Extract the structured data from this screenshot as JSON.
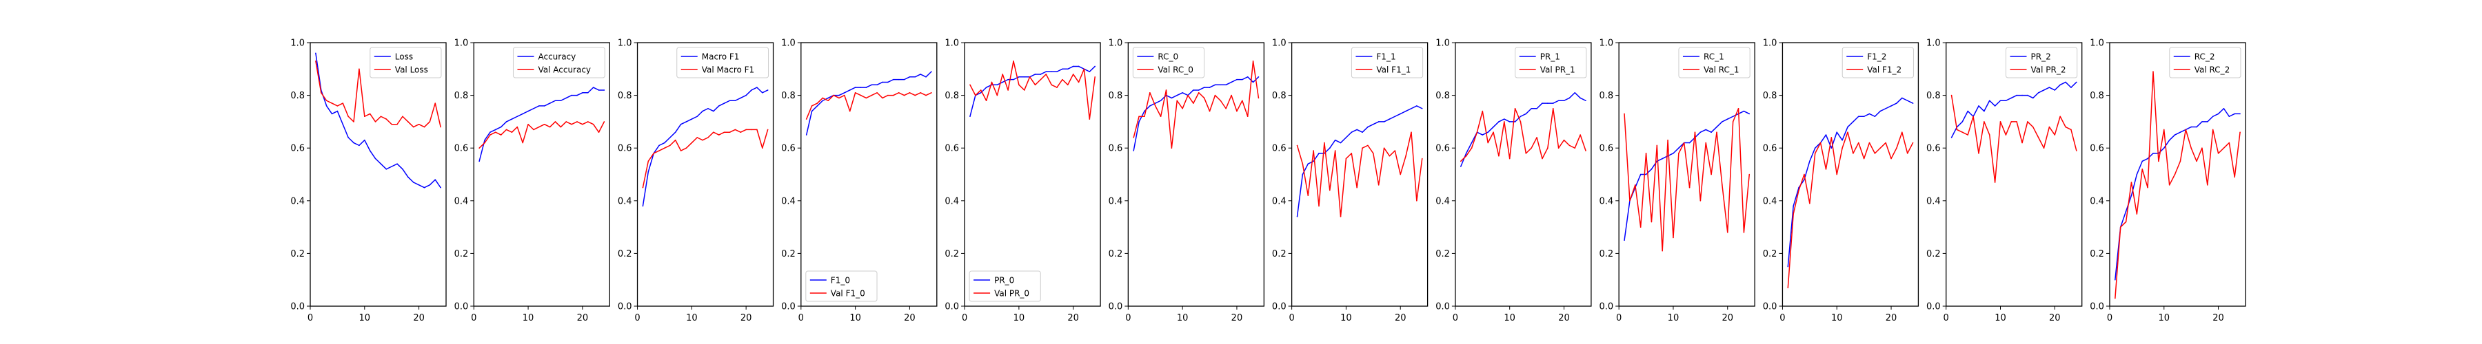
{
  "figure": {
    "background": "#ffffff"
  },
  "colors": {
    "train": "#0000ff",
    "val": "#ff0000",
    "axis": "#000000"
  },
  "x_ticks": [
    0,
    10,
    20
  ],
  "y_ticks": [
    "0.0",
    "0.2",
    "0.4",
    "0.6",
    "0.8",
    "1.0"
  ],
  "chart_data": [
    {
      "type": "line",
      "xlim": [
        0,
        25
      ],
      "ylim": [
        0,
        1
      ],
      "legend": "top-right",
      "x": [
        1,
        2,
        3,
        4,
        5,
        6,
        7,
        8,
        9,
        10,
        11,
        12,
        13,
        14,
        15,
        16,
        17,
        18,
        19,
        20,
        21,
        22,
        23,
        24
      ],
      "series": [
        {
          "name": "Loss",
          "color": "#0000ff",
          "values": [
            0.96,
            0.82,
            0.76,
            0.73,
            0.74,
            0.69,
            0.64,
            0.62,
            0.61,
            0.63,
            0.59,
            0.56,
            0.54,
            0.52,
            0.53,
            0.54,
            0.52,
            0.49,
            0.47,
            0.46,
            0.45,
            0.46,
            0.48,
            0.45
          ]
        },
        {
          "name": "Val Loss",
          "color": "#ff0000",
          "values": [
            0.93,
            0.81,
            0.78,
            0.77,
            0.76,
            0.77,
            0.72,
            0.7,
            0.9,
            0.72,
            0.73,
            0.7,
            0.72,
            0.71,
            0.69,
            0.69,
            0.72,
            0.7,
            0.68,
            0.69,
            0.68,
            0.7,
            0.77,
            0.68
          ]
        }
      ]
    },
    {
      "type": "line",
      "xlim": [
        0,
        25
      ],
      "ylim": [
        0,
        1
      ],
      "legend": "top-right",
      "x": [
        1,
        2,
        3,
        4,
        5,
        6,
        7,
        8,
        9,
        10,
        11,
        12,
        13,
        14,
        15,
        16,
        17,
        18,
        19,
        20,
        21,
        22,
        23,
        24
      ],
      "series": [
        {
          "name": "Accuracy",
          "color": "#0000ff",
          "values": [
            0.55,
            0.63,
            0.66,
            0.67,
            0.68,
            0.7,
            0.71,
            0.72,
            0.73,
            0.74,
            0.75,
            0.76,
            0.76,
            0.77,
            0.78,
            0.78,
            0.79,
            0.8,
            0.8,
            0.81,
            0.81,
            0.83,
            0.82,
            0.82
          ]
        },
        {
          "name": "Val Accuracy",
          "color": "#ff0000",
          "values": [
            0.6,
            0.62,
            0.65,
            0.66,
            0.65,
            0.67,
            0.66,
            0.68,
            0.62,
            0.69,
            0.67,
            0.68,
            0.69,
            0.68,
            0.7,
            0.68,
            0.7,
            0.69,
            0.7,
            0.69,
            0.7,
            0.69,
            0.66,
            0.7
          ]
        }
      ]
    },
    {
      "type": "line",
      "xlim": [
        0,
        25
      ],
      "ylim": [
        0,
        1
      ],
      "legend": "top-right",
      "x": [
        1,
        2,
        3,
        4,
        5,
        6,
        7,
        8,
        9,
        10,
        11,
        12,
        13,
        14,
        15,
        16,
        17,
        18,
        19,
        20,
        21,
        22,
        23,
        24
      ],
      "series": [
        {
          "name": "Macro F1",
          "color": "#0000ff",
          "values": [
            0.38,
            0.51,
            0.58,
            0.61,
            0.62,
            0.64,
            0.66,
            0.69,
            0.7,
            0.71,
            0.72,
            0.74,
            0.75,
            0.74,
            0.76,
            0.77,
            0.78,
            0.78,
            0.79,
            0.8,
            0.82,
            0.83,
            0.81,
            0.82
          ]
        },
        {
          "name": "Val Macro F1",
          "color": "#ff0000",
          "values": [
            0.45,
            0.55,
            0.58,
            0.59,
            0.6,
            0.61,
            0.63,
            0.59,
            0.6,
            0.62,
            0.64,
            0.63,
            0.64,
            0.66,
            0.65,
            0.66,
            0.66,
            0.67,
            0.66,
            0.67,
            0.67,
            0.67,
            0.6,
            0.67
          ]
        }
      ]
    },
    {
      "type": "line",
      "xlim": [
        0,
        25
      ],
      "ylim": [
        0,
        1
      ],
      "legend": "bottom-left",
      "x": [
        1,
        2,
        3,
        4,
        5,
        6,
        7,
        8,
        9,
        10,
        11,
        12,
        13,
        14,
        15,
        16,
        17,
        18,
        19,
        20,
        21,
        22,
        23,
        24
      ],
      "series": [
        {
          "name": "F1_0",
          "color": "#0000ff",
          "values": [
            0.65,
            0.74,
            0.76,
            0.78,
            0.79,
            0.8,
            0.8,
            0.81,
            0.82,
            0.83,
            0.83,
            0.83,
            0.84,
            0.84,
            0.85,
            0.85,
            0.86,
            0.86,
            0.86,
            0.87,
            0.87,
            0.88,
            0.87,
            0.89
          ]
        },
        {
          "name": "Val F1_0",
          "color": "#ff0000",
          "values": [
            0.71,
            0.76,
            0.77,
            0.79,
            0.78,
            0.8,
            0.79,
            0.8,
            0.74,
            0.81,
            0.8,
            0.79,
            0.8,
            0.81,
            0.79,
            0.8,
            0.8,
            0.81,
            0.8,
            0.81,
            0.8,
            0.81,
            0.8,
            0.81
          ]
        }
      ]
    },
    {
      "type": "line",
      "xlim": [
        0,
        25
      ],
      "ylim": [
        0,
        1
      ],
      "legend": "bottom-left",
      "x": [
        1,
        2,
        3,
        4,
        5,
        6,
        7,
        8,
        9,
        10,
        11,
        12,
        13,
        14,
        15,
        16,
        17,
        18,
        19,
        20,
        21,
        22,
        23,
        24
      ],
      "series": [
        {
          "name": "PR_0",
          "color": "#0000ff",
          "values": [
            0.72,
            0.8,
            0.81,
            0.83,
            0.84,
            0.84,
            0.85,
            0.86,
            0.86,
            0.87,
            0.87,
            0.87,
            0.88,
            0.88,
            0.89,
            0.89,
            0.89,
            0.9,
            0.9,
            0.91,
            0.91,
            0.9,
            0.89,
            0.91
          ]
        },
        {
          "name": "Val PR_0",
          "color": "#ff0000",
          "values": [
            0.84,
            0.8,
            0.82,
            0.78,
            0.85,
            0.8,
            0.88,
            0.82,
            0.93,
            0.84,
            0.82,
            0.87,
            0.84,
            0.86,
            0.88,
            0.84,
            0.83,
            0.86,
            0.84,
            0.88,
            0.85,
            0.9,
            0.71,
            0.87
          ]
        }
      ]
    },
    {
      "type": "line",
      "xlim": [
        0,
        25
      ],
      "ylim": [
        0,
        1
      ],
      "legend": "top-left",
      "x": [
        1,
        2,
        3,
        4,
        5,
        6,
        7,
        8,
        9,
        10,
        11,
        12,
        13,
        14,
        15,
        16,
        17,
        18,
        19,
        20,
        21,
        22,
        23,
        24
      ],
      "series": [
        {
          "name": "RC_0",
          "color": "#0000ff",
          "values": [
            0.59,
            0.7,
            0.74,
            0.76,
            0.77,
            0.78,
            0.8,
            0.79,
            0.8,
            0.81,
            0.8,
            0.82,
            0.82,
            0.83,
            0.83,
            0.84,
            0.84,
            0.84,
            0.85,
            0.86,
            0.86,
            0.87,
            0.85,
            0.87
          ]
        },
        {
          "name": "Val RC_0",
          "color": "#ff0000",
          "values": [
            0.64,
            0.72,
            0.72,
            0.81,
            0.76,
            0.72,
            0.82,
            0.6,
            0.78,
            0.75,
            0.8,
            0.77,
            0.81,
            0.79,
            0.74,
            0.8,
            0.78,
            0.75,
            0.8,
            0.74,
            0.78,
            0.72,
            0.93,
            0.79
          ]
        }
      ]
    },
    {
      "type": "line",
      "xlim": [
        0,
        25
      ],
      "ylim": [
        0,
        1
      ],
      "legend": "top-right",
      "x": [
        1,
        2,
        3,
        4,
        5,
        6,
        7,
        8,
        9,
        10,
        11,
        12,
        13,
        14,
        15,
        16,
        17,
        18,
        19,
        20,
        21,
        22,
        23,
        24
      ],
      "series": [
        {
          "name": "F1_1",
          "color": "#0000ff",
          "values": [
            0.34,
            0.5,
            0.54,
            0.55,
            0.58,
            0.58,
            0.6,
            0.63,
            0.62,
            0.64,
            0.66,
            0.67,
            0.66,
            0.68,
            0.69,
            0.7,
            0.7,
            0.71,
            0.72,
            0.73,
            0.74,
            0.75,
            0.76,
            0.75
          ]
        },
        {
          "name": "Val F1_1",
          "color": "#ff0000",
          "values": [
            0.61,
            0.54,
            0.42,
            0.59,
            0.38,
            0.62,
            0.44,
            0.59,
            0.34,
            0.56,
            0.58,
            0.45,
            0.6,
            0.61,
            0.58,
            0.46,
            0.6,
            0.57,
            0.59,
            0.5,
            0.57,
            0.66,
            0.4,
            0.56
          ]
        }
      ]
    },
    {
      "type": "line",
      "xlim": [
        0,
        25
      ],
      "ylim": [
        0,
        1
      ],
      "legend": "top-right",
      "x": [
        1,
        2,
        3,
        4,
        5,
        6,
        7,
        8,
        9,
        10,
        11,
        12,
        13,
        14,
        15,
        16,
        17,
        18,
        19,
        20,
        21,
        22,
        23,
        24
      ],
      "series": [
        {
          "name": "PR_1",
          "color": "#0000ff",
          "values": [
            0.53,
            0.58,
            0.62,
            0.66,
            0.65,
            0.66,
            0.68,
            0.7,
            0.71,
            0.7,
            0.7,
            0.72,
            0.73,
            0.75,
            0.75,
            0.77,
            0.77,
            0.77,
            0.78,
            0.78,
            0.79,
            0.81,
            0.79,
            0.78
          ]
        },
        {
          "name": "Val PR_1",
          "color": "#ff0000",
          "values": [
            0.55,
            0.57,
            0.6,
            0.66,
            0.74,
            0.62,
            0.66,
            0.57,
            0.7,
            0.56,
            0.75,
            0.7,
            0.58,
            0.6,
            0.64,
            0.56,
            0.6,
            0.75,
            0.6,
            0.63,
            0.61,
            0.6,
            0.65,
            0.59
          ]
        }
      ]
    },
    {
      "type": "line",
      "xlim": [
        0,
        25
      ],
      "ylim": [
        0,
        1
      ],
      "legend": "top-right",
      "x": [
        1,
        2,
        3,
        4,
        5,
        6,
        7,
        8,
        9,
        10,
        11,
        12,
        13,
        14,
        15,
        16,
        17,
        18,
        19,
        20,
        21,
        22,
        23,
        24
      ],
      "series": [
        {
          "name": "RC_1",
          "color": "#0000ff",
          "values": [
            0.25,
            0.4,
            0.45,
            0.5,
            0.5,
            0.52,
            0.55,
            0.56,
            0.57,
            0.58,
            0.6,
            0.62,
            0.62,
            0.64,
            0.66,
            0.67,
            0.66,
            0.68,
            0.7,
            0.71,
            0.72,
            0.73,
            0.74,
            0.73
          ]
        },
        {
          "name": "Val RC_1",
          "color": "#ff0000",
          "values": [
            0.73,
            0.4,
            0.46,
            0.3,
            0.58,
            0.32,
            0.61,
            0.21,
            0.63,
            0.26,
            0.58,
            0.62,
            0.45,
            0.66,
            0.4,
            0.62,
            0.5,
            0.66,
            0.46,
            0.28,
            0.7,
            0.75,
            0.28,
            0.5
          ]
        }
      ]
    },
    {
      "type": "line",
      "xlim": [
        0,
        25
      ],
      "ylim": [
        0,
        1
      ],
      "legend": "top-right",
      "x": [
        1,
        2,
        3,
        4,
        5,
        6,
        7,
        8,
        9,
        10,
        11,
        12,
        13,
        14,
        15,
        16,
        17,
        18,
        19,
        20,
        21,
        22,
        23,
        24
      ],
      "series": [
        {
          "name": "F1_2",
          "color": "#0000ff",
          "values": [
            0.15,
            0.38,
            0.45,
            0.48,
            0.55,
            0.6,
            0.62,
            0.65,
            0.6,
            0.66,
            0.63,
            0.68,
            0.7,
            0.72,
            0.72,
            0.73,
            0.72,
            0.74,
            0.75,
            0.76,
            0.77,
            0.79,
            0.78,
            0.77
          ]
        },
        {
          "name": "Val F1_2",
          "color": "#ff0000",
          "values": [
            0.07,
            0.35,
            0.44,
            0.5,
            0.39,
            0.58,
            0.62,
            0.52,
            0.64,
            0.5,
            0.6,
            0.66,
            0.58,
            0.62,
            0.56,
            0.62,
            0.58,
            0.6,
            0.62,
            0.56,
            0.6,
            0.66,
            0.58,
            0.62
          ]
        }
      ]
    },
    {
      "type": "line",
      "xlim": [
        0,
        25
      ],
      "ylim": [
        0,
        1
      ],
      "legend": "top-right",
      "x": [
        1,
        2,
        3,
        4,
        5,
        6,
        7,
        8,
        9,
        10,
        11,
        12,
        13,
        14,
        15,
        16,
        17,
        18,
        19,
        20,
        21,
        22,
        23,
        24
      ],
      "series": [
        {
          "name": "PR_2",
          "color": "#0000ff",
          "values": [
            0.64,
            0.68,
            0.7,
            0.74,
            0.72,
            0.76,
            0.74,
            0.78,
            0.76,
            0.78,
            0.78,
            0.79,
            0.8,
            0.8,
            0.8,
            0.79,
            0.81,
            0.82,
            0.83,
            0.82,
            0.84,
            0.85,
            0.83,
            0.85
          ]
        },
        {
          "name": "Val PR_2",
          "color": "#ff0000",
          "values": [
            0.8,
            0.67,
            0.66,
            0.65,
            0.72,
            0.58,
            0.7,
            0.65,
            0.47,
            0.7,
            0.65,
            0.7,
            0.7,
            0.62,
            0.7,
            0.68,
            0.64,
            0.6,
            0.68,
            0.65,
            0.72,
            0.68,
            0.67,
            0.59
          ]
        }
      ]
    },
    {
      "type": "line",
      "xlim": [
        0,
        25
      ],
      "ylim": [
        0,
        1
      ],
      "legend": "top-right",
      "x": [
        1,
        2,
        3,
        4,
        5,
        6,
        7,
        8,
        9,
        10,
        11,
        12,
        13,
        14,
        15,
        16,
        17,
        18,
        19,
        20,
        21,
        22,
        23,
        24
      ],
      "series": [
        {
          "name": "RC_2",
          "color": "#0000ff",
          "values": [
            0.1,
            0.3,
            0.36,
            0.42,
            0.5,
            0.55,
            0.56,
            0.58,
            0.58,
            0.6,
            0.63,
            0.65,
            0.66,
            0.67,
            0.68,
            0.68,
            0.7,
            0.7,
            0.72,
            0.73,
            0.75,
            0.72,
            0.73,
            0.73
          ]
        },
        {
          "name": "Val RC_2",
          "color": "#ff0000",
          "values": [
            0.03,
            0.3,
            0.32,
            0.47,
            0.35,
            0.52,
            0.45,
            0.89,
            0.55,
            0.67,
            0.46,
            0.5,
            0.55,
            0.67,
            0.6,
            0.55,
            0.6,
            0.46,
            0.67,
            0.58,
            0.6,
            0.62,
            0.49,
            0.66
          ]
        }
      ]
    }
  ]
}
